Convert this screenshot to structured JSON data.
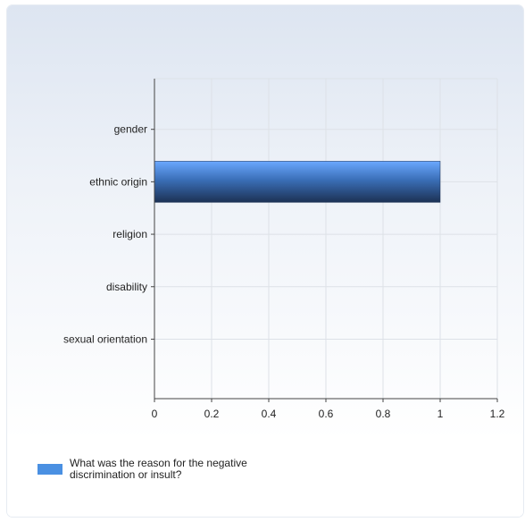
{
  "chart_data": {
    "type": "bar",
    "orientation": "horizontal",
    "categories": [
      "gender",
      "ethnic origin",
      "religion",
      "disability",
      "sexual orientation"
    ],
    "series": [
      {
        "name": "What was the reason for the negative discrimination or insult?",
        "values": [
          0,
          1,
          0,
          0,
          0
        ]
      }
    ],
    "x_ticks": [
      "0",
      "0.2",
      "0.4",
      "0.6",
      "0.8",
      "1",
      "1.2"
    ],
    "xlim": [
      0,
      1.2
    ],
    "grid": true,
    "legend": "bottom-left",
    "colors": {
      "bar_top": "#6aa8ff",
      "bar_bottom": "#1c3154",
      "grid": "#dde1e7",
      "axis": "#444444",
      "legend_swatch": "#4a90e2"
    }
  }
}
